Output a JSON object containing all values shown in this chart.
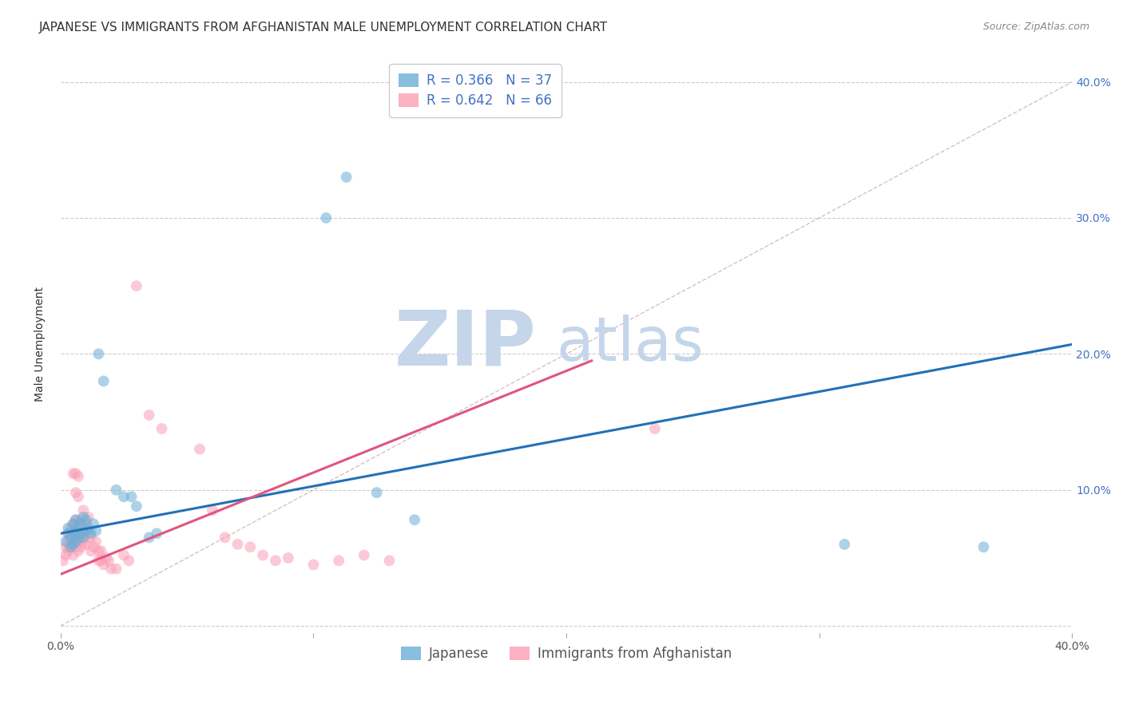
{
  "title": "JAPANESE VS IMMIGRANTS FROM AFGHANISTAN MALE UNEMPLOYMENT CORRELATION CHART",
  "source": "Source: ZipAtlas.com",
  "ylabel": "Male Unemployment",
  "xlim": [
    0.0,
    0.4
  ],
  "ylim": [
    -0.005,
    0.42
  ],
  "x_ticks": [
    0.0,
    0.1,
    0.2,
    0.3,
    0.4
  ],
  "y_ticks": [
    0.0,
    0.1,
    0.2,
    0.3,
    0.4
  ],
  "watermark_zip": "ZIP",
  "watermark_atlas": "atlas",
  "watermark_color_zip": "#c5d5ea",
  "watermark_color_atlas": "#c5d5ea",
  "blue_line": {
    "x0": 0.0,
    "y0": 0.068,
    "x1": 0.4,
    "y1": 0.207
  },
  "pink_line": {
    "x0": 0.0,
    "y0": 0.038,
    "x1": 0.21,
    "y1": 0.195
  },
  "blue_scatter": [
    [
      0.002,
      0.062
    ],
    [
      0.003,
      0.068
    ],
    [
      0.003,
      0.072
    ],
    [
      0.004,
      0.058
    ],
    [
      0.004,
      0.065
    ],
    [
      0.005,
      0.06
    ],
    [
      0.005,
      0.068
    ],
    [
      0.005,
      0.075
    ],
    [
      0.006,
      0.062
    ],
    [
      0.006,
      0.07
    ],
    [
      0.006,
      0.078
    ],
    [
      0.007,
      0.065
    ],
    [
      0.007,
      0.072
    ],
    [
      0.008,
      0.068
    ],
    [
      0.008,
      0.075
    ],
    [
      0.009,
      0.065
    ],
    [
      0.009,
      0.08
    ],
    [
      0.01,
      0.07
    ],
    [
      0.01,
      0.078
    ],
    [
      0.011,
      0.072
    ],
    [
      0.012,
      0.068
    ],
    [
      0.013,
      0.075
    ],
    [
      0.014,
      0.07
    ],
    [
      0.015,
      0.2
    ],
    [
      0.017,
      0.18
    ],
    [
      0.022,
      0.1
    ],
    [
      0.025,
      0.095
    ],
    [
      0.028,
      0.095
    ],
    [
      0.03,
      0.088
    ],
    [
      0.035,
      0.065
    ],
    [
      0.038,
      0.068
    ],
    [
      0.105,
      0.3
    ],
    [
      0.113,
      0.33
    ],
    [
      0.125,
      0.098
    ],
    [
      0.14,
      0.078
    ],
    [
      0.31,
      0.06
    ],
    [
      0.365,
      0.058
    ]
  ],
  "pink_scatter": [
    [
      0.001,
      0.048
    ],
    [
      0.002,
      0.052
    ],
    [
      0.002,
      0.058
    ],
    [
      0.003,
      0.055
    ],
    [
      0.003,
      0.062
    ],
    [
      0.003,
      0.068
    ],
    [
      0.004,
      0.058
    ],
    [
      0.004,
      0.065
    ],
    [
      0.004,
      0.072
    ],
    [
      0.005,
      0.052
    ],
    [
      0.005,
      0.06
    ],
    [
      0.005,
      0.068
    ],
    [
      0.005,
      0.075
    ],
    [
      0.005,
      0.112
    ],
    [
      0.006,
      0.058
    ],
    [
      0.006,
      0.065
    ],
    [
      0.006,
      0.078
    ],
    [
      0.006,
      0.098
    ],
    [
      0.006,
      0.112
    ],
    [
      0.007,
      0.055
    ],
    [
      0.007,
      0.062
    ],
    [
      0.007,
      0.075
    ],
    [
      0.007,
      0.095
    ],
    [
      0.007,
      0.11
    ],
    [
      0.008,
      0.058
    ],
    [
      0.008,
      0.065
    ],
    [
      0.008,
      0.078
    ],
    [
      0.009,
      0.062
    ],
    [
      0.009,
      0.07
    ],
    [
      0.009,
      0.085
    ],
    [
      0.01,
      0.06
    ],
    [
      0.01,
      0.068
    ],
    [
      0.01,
      0.075
    ],
    [
      0.011,
      0.068
    ],
    [
      0.011,
      0.08
    ],
    [
      0.012,
      0.055
    ],
    [
      0.012,
      0.065
    ],
    [
      0.013,
      0.058
    ],
    [
      0.014,
      0.062
    ],
    [
      0.015,
      0.048
    ],
    [
      0.015,
      0.055
    ],
    [
      0.016,
      0.048
    ],
    [
      0.016,
      0.055
    ],
    [
      0.017,
      0.045
    ],
    [
      0.018,
      0.05
    ],
    [
      0.019,
      0.048
    ],
    [
      0.02,
      0.042
    ],
    [
      0.022,
      0.042
    ],
    [
      0.025,
      0.052
    ],
    [
      0.027,
      0.048
    ],
    [
      0.03,
      0.25
    ],
    [
      0.035,
      0.155
    ],
    [
      0.04,
      0.145
    ],
    [
      0.055,
      0.13
    ],
    [
      0.06,
      0.085
    ],
    [
      0.065,
      0.065
    ],
    [
      0.07,
      0.06
    ],
    [
      0.075,
      0.058
    ],
    [
      0.08,
      0.052
    ],
    [
      0.085,
      0.048
    ],
    [
      0.09,
      0.05
    ],
    [
      0.1,
      0.045
    ],
    [
      0.11,
      0.048
    ],
    [
      0.12,
      0.052
    ],
    [
      0.13,
      0.048
    ],
    [
      0.235,
      0.145
    ]
  ],
  "title_fontsize": 11,
  "source_fontsize": 9,
  "axis_label_fontsize": 10,
  "tick_fontsize": 10,
  "legend_fontsize": 12,
  "watermark_fontsize_zip": 70,
  "watermark_fontsize_atlas": 55,
  "scatter_size": 100,
  "scatter_alpha": 0.55,
  "line_width": 2.2,
  "blue_color": "#6baed6",
  "blue_line_color": "#2171b5",
  "pink_color": "#fa9fb5",
  "pink_line_color": "#e05580",
  "legend_text_color": "#4472c4",
  "diag_color": "#d0b0b0",
  "grid_color": "#cccccc"
}
